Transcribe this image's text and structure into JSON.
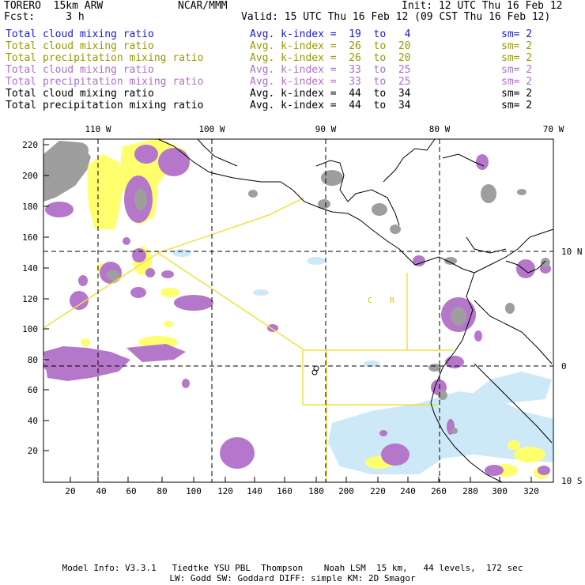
{
  "header": {
    "model": "TORERO  15km ARW",
    "org": "NCAR/MMM",
    "init": "Init: 12 UTC Thu 16 Feb 12",
    "fcst": "Fcst:     3 h",
    "valid": "Valid: 15 UTC Thu 16 Feb 12 (09 CST Thu 16 Feb 12)"
  },
  "legend": [
    {
      "name": "Total cloud mixing ratio",
      "k": "Avg. k-index =  19  to   4",
      "sm": "sm= 2",
      "color": "#1a1acc"
    },
    {
      "name": "Total cloud mixing ratio",
      "k": "Avg. k-index =  26  to  20",
      "sm": "sm= 2",
      "color": "#999900"
    },
    {
      "name": "Total precipitation mixing ratio",
      "k": "Avg. k-index =  26  to  20",
      "sm": "sm= 2",
      "color": "#999900"
    },
    {
      "name": "Total cloud mixing ratio",
      "k": "Avg. k-index =  33  to  25",
      "sm": "sm= 2",
      "color": "#b070c8"
    },
    {
      "name": "Total precipitation mixing ratio",
      "k": "Avg. k-index =  33  to  25",
      "sm": "sm= 2",
      "color": "#b070c8"
    },
    {
      "name": "Total cloud mixing ratio",
      "k": "Avg. k-index =  44  to  34",
      "sm": "sm= 2",
      "color": "#000000"
    },
    {
      "name": "Total precipitation mixing ratio",
      "k": "Avg. k-index =  44  to  34",
      "sm": "sm= 2",
      "color": "#000000"
    }
  ],
  "axes": {
    "x_ticks": [
      "20",
      "40",
      "60",
      "80",
      "100",
      "120",
      "140",
      "160",
      "180",
      "200",
      "220",
      "240",
      "260",
      "280",
      "300",
      "320"
    ],
    "y_ticks": [
      "20",
      "40",
      "60",
      "80",
      "100",
      "120",
      "140",
      "160",
      "180",
      "200",
      "220"
    ],
    "lon_labels": [
      "110 W",
      "100 W",
      "90 W",
      "80 W",
      "70 W"
    ],
    "lat_labels": [
      "10 N",
      "0",
      "10 S"
    ]
  },
  "map_labels": {
    "c": "C",
    "r": "R"
  },
  "footer": {
    "line1": "Model Info: V3.3.1   Tiedtke YSU PBL  Thompson    Noah LSM  15 km,   44 levels,  172 sec",
    "line2": "LW: Godd SW: Goddard DIFF: simple KM: 2D Smagor"
  },
  "colors": {
    "purple": "#b070c8",
    "yellow": "#ffff66",
    "gray": "#999999",
    "lightblue": "#c8e8f8",
    "outline": "#f0e040"
  }
}
